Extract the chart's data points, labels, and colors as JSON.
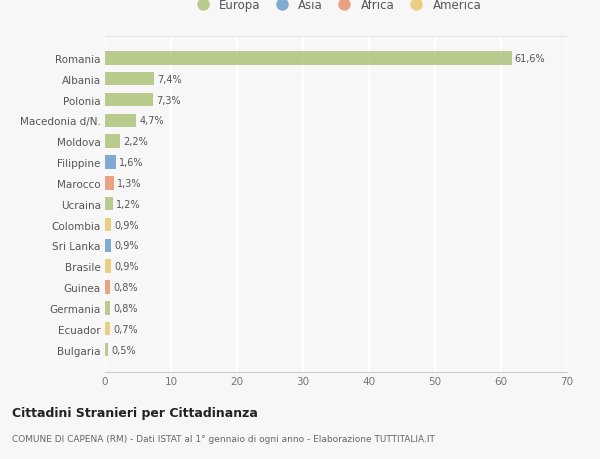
{
  "countries": [
    "Romania",
    "Albania",
    "Polonia",
    "Macedonia d/N.",
    "Moldova",
    "Filippine",
    "Marocco",
    "Ucraina",
    "Colombia",
    "Sri Lanka",
    "Brasile",
    "Guinea",
    "Germania",
    "Ecuador",
    "Bulgaria"
  ],
  "values": [
    61.6,
    7.4,
    7.3,
    4.7,
    2.2,
    1.6,
    1.3,
    1.2,
    0.9,
    0.9,
    0.9,
    0.8,
    0.8,
    0.7,
    0.5
  ],
  "labels": [
    "61,6%",
    "7,4%",
    "7,3%",
    "4,7%",
    "2,2%",
    "1,6%",
    "1,3%",
    "1,2%",
    "0,9%",
    "0,9%",
    "0,9%",
    "0,8%",
    "0,8%",
    "0,7%",
    "0,5%"
  ],
  "colors": [
    "#afc47a",
    "#afc47a",
    "#afc47a",
    "#afc47a",
    "#afc47a",
    "#6b9dcc",
    "#e8956e",
    "#afc47a",
    "#e8c96e",
    "#6b9dcc",
    "#e8c96e",
    "#e8956e",
    "#afc47a",
    "#e8c96e",
    "#afc47a"
  ],
  "legend": [
    {
      "label": "Europa",
      "color": "#afc47a"
    },
    {
      "label": "Asia",
      "color": "#6b9dcc"
    },
    {
      "label": "Africa",
      "color": "#e8956e"
    },
    {
      "label": "America",
      "color": "#e8c96e"
    }
  ],
  "xlim": [
    0,
    70
  ],
  "xticks": [
    0,
    10,
    20,
    30,
    40,
    50,
    60,
    70
  ],
  "title": "Cittadini Stranieri per Cittadinanza",
  "subtitle": "COMUNE DI CAPENA (RM) - Dati ISTAT al 1° gennaio di ogni anno - Elaborazione TUTTITALIA.IT",
  "bg_color": "#f7f7f7",
  "grid_color": "#ffffff",
  "bar_height": 0.65
}
